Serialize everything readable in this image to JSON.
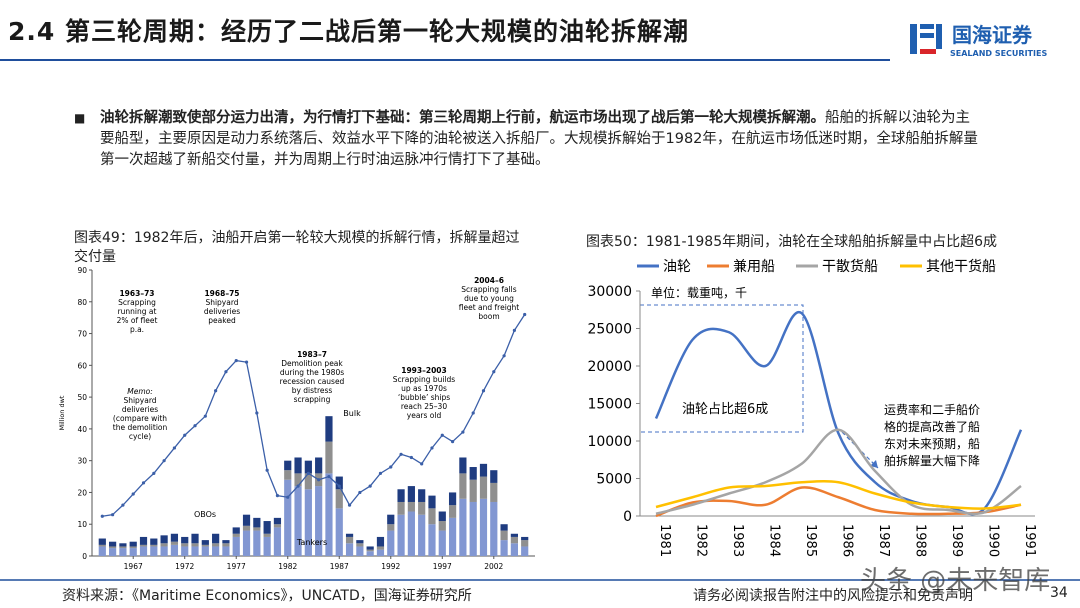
{
  "header": {
    "title": "2.4 第三轮周期：经历了二战后第一轮大规模的油轮拆解潮",
    "logo": "国海证券",
    "logo_en": "SEALAND SECURITIES"
  },
  "bullet": {
    "bold": "油轮拆解潮致使部分运力出清，为行情打下基础：第三轮周期上行前，航运市场出现了战后第一轮大规模拆解潮。",
    "text": "船舶的拆解以油轮为主要船型，主要原因是动力系统落后、效益水平下降的油轮被送入拆船厂。大规模拆解始于1982年，在航运市场低迷时期，全球船舶拆解量第一次超越了新船交付量，并为周期上行时油运脉冲行情打下了基础。"
  },
  "chart_data": [
    {
      "type": "bar",
      "caption": "图表49：1982年后，油船开启第一轮较大规模的拆解行情，拆解量超过交付量",
      "ylabel": "Million dwt",
      "x": [
        1964,
        1965,
        1966,
        1967,
        1968,
        1969,
        1970,
        1971,
        1972,
        1973,
        1974,
        1975,
        1976,
        1977,
        1978,
        1979,
        1980,
        1981,
        1982,
        1983,
        1984,
        1985,
        1986,
        1987,
        1988,
        1989,
        1990,
        1991,
        1992,
        1993,
        1994,
        1995,
        1996,
        1997,
        1998,
        1999,
        2000,
        2001,
        2002,
        2003,
        2004,
        2005
      ],
      "series": [
        {
          "name": "Tankers",
          "color": "#8297d2",
          "values": [
            3,
            2.5,
            2.5,
            2.5,
            3,
            3,
            3,
            3.5,
            3,
            3,
            3,
            3,
            3,
            6,
            8,
            8,
            6,
            9,
            24,
            22,
            21,
            22,
            26,
            15,
            4,
            3,
            1.5,
            2,
            8,
            13,
            14,
            13,
            10,
            8,
            12,
            18,
            17,
            18,
            17,
            5,
            4,
            3
          ]
        },
        {
          "name": "Bulk",
          "color": "#8f8f8f",
          "values": [
            0.5,
            0.5,
            0.5,
            0.5,
            0.5,
            0.5,
            1,
            1,
            1,
            1,
            0.5,
            1,
            1,
            1,
            1.5,
            1,
            1,
            1,
            3,
            4,
            5,
            4,
            10,
            6,
            2,
            1,
            0.5,
            1,
            2,
            4,
            3,
            4,
            5,
            3,
            4,
            8,
            7,
            7,
            6,
            3,
            2,
            2
          ]
        },
        {
          "name": "OBOs",
          "color": "#1f3c80",
          "values": [
            2,
            1.5,
            1,
            1.5,
            2.5,
            2,
            2.5,
            2.5,
            2,
            3,
            1.5,
            3,
            1,
            2,
            3.5,
            3,
            4,
            2,
            3,
            5,
            4,
            5,
            8,
            4,
            1,
            1,
            1,
            3,
            3,
            4,
            5,
            4,
            4,
            3,
            4,
            5,
            4,
            4,
            4,
            2,
            1,
            1
          ]
        }
      ],
      "line": {
        "color": "#3b5fa8",
        "values": [
          12.5,
          13,
          16,
          19.5,
          23,
          26,
          30,
          34,
          38,
          41,
          44,
          52,
          58,
          61.5,
          61,
          45,
          27,
          19,
          18.5,
          22,
          26,
          24,
          25,
          22,
          16,
          20,
          22,
          26,
          28,
          32,
          31,
          29,
          34,
          38,
          36,
          39,
          45,
          52,
          58,
          63,
          71,
          76
        ]
      },
      "xlim": [
        1963,
        2006
      ],
      "ylim": [
        0,
        90
      ],
      "xticks": [
        1967,
        1972,
        1977,
        1982,
        1987,
        1992,
        1997,
        2002
      ],
      "yticks": [
        0,
        10,
        20,
        30,
        40,
        50,
        60,
        70,
        80,
        90
      ],
      "annotations": [
        [
          "1963–73",
          "Scrapping",
          "running at",
          "2% of fleet",
          "p.a."
        ],
        [
          "1968–75",
          "Shipyard",
          "deliveries",
          "peaked"
        ],
        [
          "Memo:",
          "Shipyard",
          "deliveries",
          "(compare with",
          "the demolition",
          "cycle)"
        ],
        [
          "1983–7",
          "Demolition peak",
          "during the 1980s",
          "recession caused",
          "by distress",
          "scrapping"
        ],
        [
          "1993–2003",
          "Scrapping builds",
          "up as 1970s",
          "‘bubble’ ships",
          "reach 25–30",
          "years old"
        ],
        [
          "2004–6",
          "Scrapping falls",
          "due to young",
          "fleet and freight",
          "boom"
        ]
      ]
    },
    {
      "type": "line",
      "caption": "图表50：1981-1985年期间，油轮在全球船舶拆解量中占比超6成",
      "categories": [
        "1981",
        "1982",
        "1983",
        "1984",
        "1985",
        "1986",
        "1987",
        "1988",
        "1989",
        "1990",
        "1991"
      ],
      "series": [
        {
          "name": "油轮",
          "color": "#4472c4",
          "values": [
            13000,
            23500,
            24500,
            20000,
            27000,
            11000,
            4500,
            2000,
            1200,
            1000,
            11500
          ]
        },
        {
          "name": "兼用船",
          "color": "#ed7d31",
          "values": [
            0,
            1800,
            2000,
            1500,
            3800,
            2500,
            800,
            300,
            300,
            500,
            1500
          ]
        },
        {
          "name": "干散货船",
          "color": "#a5a5a5",
          "values": [
            300,
            1500,
            3000,
            4500,
            7000,
            11500,
            6000,
            1500,
            800,
            500,
            4000
          ]
        },
        {
          "name": "其他干货船",
          "color": "#ffc000",
          "values": [
            1200,
            2500,
            3800,
            4000,
            4500,
            4500,
            3000,
            1800,
            1200,
            1000,
            1500
          ]
        }
      ],
      "ylim": [
        0,
        30000
      ],
      "yticks": [
        0,
        5000,
        10000,
        15000,
        20000,
        25000,
        30000
      ],
      "annotations": [
        [
          "单位：载重吨，千"
        ],
        [
          "油轮占比超6成"
        ],
        [
          "运费率和二手船价",
          "格的提高改善了船",
          "东对未来预期，船",
          "舶拆解量大幅下降"
        ]
      ]
    }
  ],
  "footer": {
    "source": "资料来源：《Maritime Economics》，UNCATD，国海证券研究所",
    "disclaimer": "请务必阅读报告附注中的风险提示和免责声明",
    "page": "34",
    "watermark": "头条 @未来智库"
  }
}
